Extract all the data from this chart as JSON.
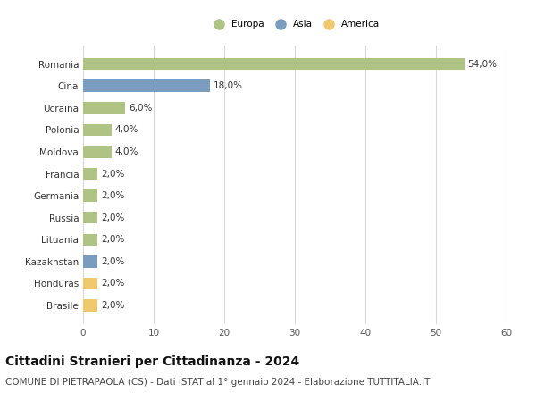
{
  "categories": [
    "Romania",
    "Cina",
    "Ucraina",
    "Polonia",
    "Moldova",
    "Francia",
    "Germania",
    "Russia",
    "Lituania",
    "Kazakhstan",
    "Honduras",
    "Brasile"
  ],
  "values": [
    54.0,
    18.0,
    6.0,
    4.0,
    4.0,
    2.0,
    2.0,
    2.0,
    2.0,
    2.0,
    2.0,
    2.0
  ],
  "colors": [
    "#aec384",
    "#7a9cbf",
    "#aec384",
    "#aec384",
    "#aec384",
    "#aec384",
    "#aec384",
    "#aec384",
    "#aec384",
    "#7a9cbf",
    "#f0c96e",
    "#f0c96e"
  ],
  "labels": [
    "54,0%",
    "18,0%",
    "6,0%",
    "4,0%",
    "4,0%",
    "2,0%",
    "2,0%",
    "2,0%",
    "2,0%",
    "2,0%",
    "2,0%",
    "2,0%"
  ],
  "legend": [
    {
      "label": "Europa",
      "color": "#aec384"
    },
    {
      "label": "Asia",
      "color": "#7a9cbf"
    },
    {
      "label": "America",
      "color": "#f0c96e"
    }
  ],
  "xlim": [
    0,
    60
  ],
  "xticks": [
    0,
    10,
    20,
    30,
    40,
    50,
    60
  ],
  "title": "Cittadini Stranieri per Cittadinanza - 2024",
  "subtitle": "COMUNE DI PIETRAPAOLA (CS) - Dati ISTAT al 1° gennaio 2024 - Elaborazione TUTTITALIA.IT",
  "background_color": "#ffffff",
  "grid_color": "#d8d8d8",
  "bar_height": 0.55,
  "title_fontsize": 10,
  "subtitle_fontsize": 7.5,
  "label_fontsize": 7.5,
  "tick_fontsize": 7.5
}
